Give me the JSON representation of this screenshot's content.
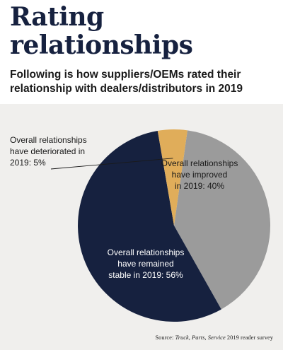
{
  "header": {
    "title": "Rating relationships",
    "subtitle": "Following is how suppliers/OEMs rated their relationship with dealers/distributors in 2019"
  },
  "chart_data": {
    "type": "pie",
    "slices": [
      {
        "label_lines": [
          "Overall relationships",
          "have improved",
          "in 2019: 40%"
        ],
        "value": 40,
        "color": "#9b9b9b",
        "text_color": "#1a1a1a"
      },
      {
        "label_lines": [
          "Overall relationships",
          "have remained",
          "stable in 2019: 56%"
        ],
        "value": 56,
        "color": "#16213f",
        "text_color": "#ffffff"
      },
      {
        "label_lines": [
          "Overall relationships",
          "have deteriorated in",
          "2019: 5%"
        ],
        "value": 5,
        "color": "#e0ad5a",
        "text_color": "#1a1a1a"
      }
    ]
  },
  "source": {
    "prefix": "Source: ",
    "publication": "Truck, Parts, Service",
    "suffix": " 2019 reader survey"
  }
}
